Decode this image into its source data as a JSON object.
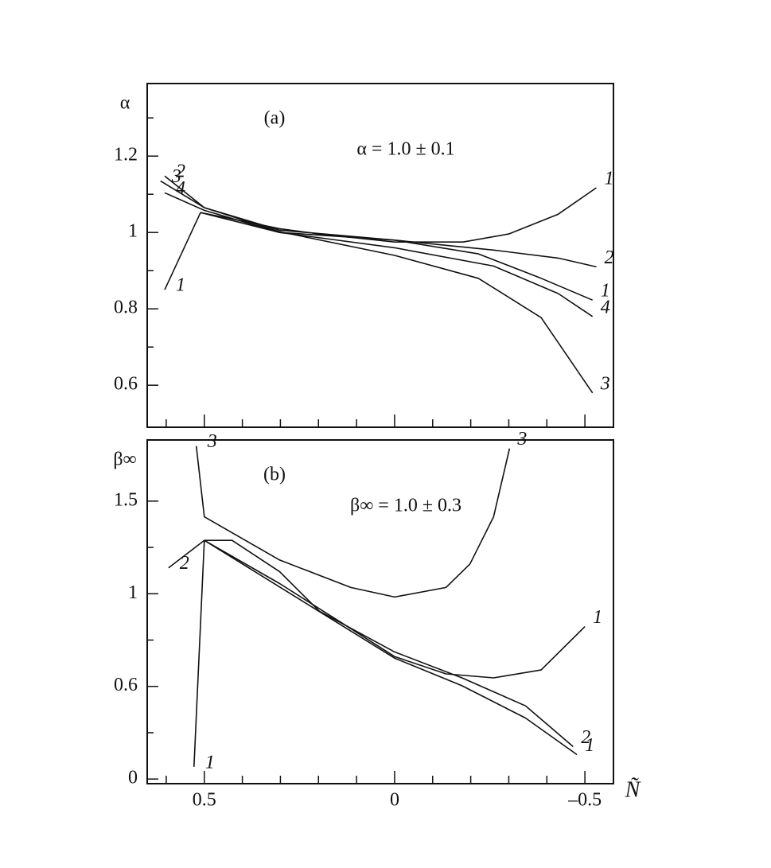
{
  "chart_data": [
    {
      "type": "line",
      "panel_label": "(a)",
      "annotation": "α = 1.0 ± 0.1",
      "y_label": "α",
      "xlim": [
        0.65,
        -0.575
      ],
      "xticks": [
        0.6,
        0.5,
        0.4,
        0.3,
        0.2,
        0.1,
        0,
        -0.1,
        -0.2,
        -0.3,
        -0.4,
        -0.5
      ],
      "x_tick_labels": false,
      "ylim": [
        0.49,
        1.39
      ],
      "yticks": [
        0.6,
        0.8,
        1,
        1.2
      ],
      "yminor": [
        0.7,
        0.9,
        1.1,
        1.3
      ],
      "color": "#111111",
      "series": [
        {
          "name": "1",
          "x": [
            0.604,
            0.51,
            0.302,
            0.198,
            0,
            -0.18,
            -0.3,
            -0.43,
            -0.53
          ],
          "values": [
            0.85,
            1.052,
            1.01,
            0.996,
            0.975,
            0.975,
            0.996,
            1.048,
            1.117
          ]
        },
        {
          "name": "1",
          "x": [
            0.51,
            0.302,
            0,
            -0.22,
            -0.385,
            -0.52
          ],
          "values": [
            1.052,
            1.0,
            0.98,
            0.944,
            0.88,
            0.823
          ]
        },
        {
          "name": "2",
          "x": [
            0.604,
            0.5,
            0.302,
            0,
            -0.26,
            -0.43,
            -0.53
          ],
          "values": [
            1.148,
            1.065,
            1.006,
            0.98,
            0.954,
            0.933,
            0.91
          ]
        },
        {
          "name": "3",
          "x": [
            0.615,
            0.5,
            0.302,
            0,
            -0.22,
            -0.385,
            -0.52
          ],
          "values": [
            1.135,
            1.065,
            1.002,
            0.94,
            0.88,
            0.777,
            0.58
          ]
        },
        {
          "name": "4",
          "x": [
            0.604,
            0.5,
            0.302,
            0,
            -0.26,
            -0.43,
            -0.52
          ],
          "values": [
            1.104,
            1.058,
            1.0,
            0.96,
            0.912,
            0.84,
            0.78
          ]
        }
      ]
    },
    {
      "type": "line",
      "panel_label": "(b)",
      "annotation": "β∞ = 1.0 ± 0.3",
      "y_label": "β∞",
      "x_label": "Ñ",
      "xlim": [
        0.65,
        -0.575
      ],
      "xticks": [
        0.5,
        0,
        {
          "value": -0.5,
          "label": "–0.5"
        }
      ],
      "xminor": [
        0.6,
        0.4,
        0.3,
        0.2,
        0.1,
        -0.1,
        -0.2,
        -0.3,
        -0.4
      ],
      "x_tick_labels": true,
      "ylim": [
        -0.03,
        1.83
      ],
      "y_scale": "tick-spaced",
      "yticks": [
        0,
        0.6,
        1,
        1.5
      ],
      "yminor": [
        0.3,
        0.8,
        1.25
      ],
      "color": "#111111",
      "series": [
        {
          "name": "3",
          "x": [
            0.521,
            0.5,
            0.302,
            0.115,
            0,
            -0.135,
            -0.198,
            -0.26,
            -0.302
          ],
          "values": [
            1.797,
            1.415,
            1.182,
            1.034,
            0.986,
            1.034,
            1.161,
            1.415,
            1.784
          ]
        },
        {
          "name": "2",
          "x": [
            0.594,
            0.5,
            0.427,
            0.302,
            0.198,
            0,
            -0.177,
            -0.344,
            -0.469
          ],
          "values": [
            1.14,
            1.288,
            1.288,
            1.119,
            0.925,
            0.749,
            0.637,
            0.474,
            0.21
          ]
        },
        {
          "name": "1",
          "x": [
            0.527,
            0.5,
            0.302,
            0.156,
            0,
            -0.135,
            -0.26,
            -0.385,
            -0.5
          ],
          "values": [
            0.079,
            1.288,
            1.055,
            0.892,
            0.729,
            0.654,
            0.637,
            0.671,
            0.858
          ]
        },
        {
          "name": "1",
          "x": [
            0.5,
            0,
            -0.177,
            -0.344,
            -0.479
          ],
          "values": [
            1.288,
            0.722,
            0.603,
            0.395,
            0.158
          ]
        }
      ]
    }
  ]
}
